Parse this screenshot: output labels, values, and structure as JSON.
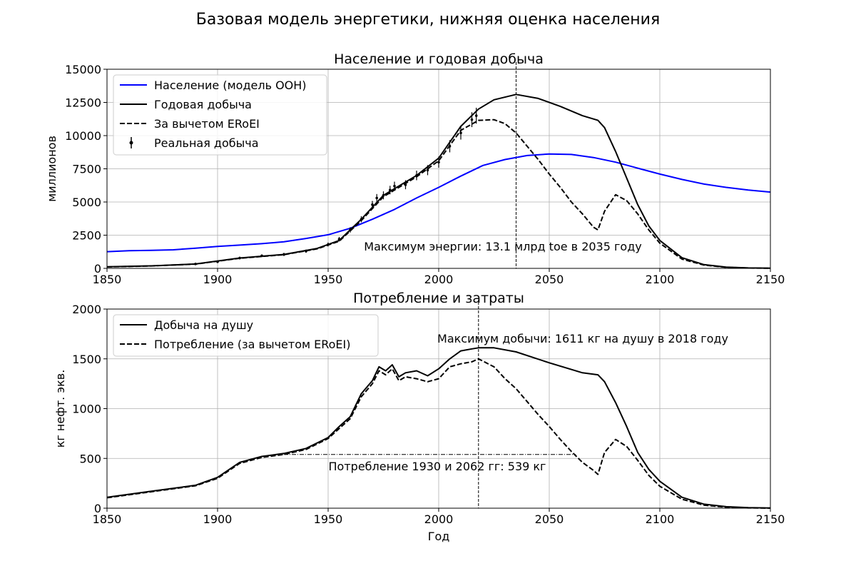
{
  "figure": {
    "suptitle": "Базовая модель энергетики, нижняя оценка населения"
  },
  "chart_data": [
    {
      "type": "line",
      "title": "Население и годовая добыча",
      "xlabel": "",
      "ylabel": "миллионов",
      "xlim": [
        1850,
        2150
      ],
      "ylim": [
        0,
        15000
      ],
      "xticks": [
        "1850",
        "1900",
        "1950",
        "2000",
        "2050",
        "2100",
        "2150"
      ],
      "yticks": [
        "0",
        "2500",
        "5000",
        "7500",
        "10000",
        "12500",
        "15000"
      ],
      "grid": true,
      "legend_position": "top-left",
      "series": [
        {
          "name": "Население (модель ООН)",
          "color": "#0000ff",
          "style": "solid",
          "x": [
            1850,
            1860,
            1870,
            1880,
            1890,
            1900,
            1910,
            1920,
            1930,
            1940,
            1950,
            1960,
            1970,
            1980,
            1990,
            2000,
            2010,
            2020,
            2030,
            2040,
            2050,
            2060,
            2070,
            2080,
            2090,
            2100,
            2110,
            2120,
            2130,
            2140,
            2150
          ],
          "y": [
            1260,
            1330,
            1360,
            1400,
            1520,
            1650,
            1750,
            1860,
            2000,
            2250,
            2530,
            3020,
            3700,
            4440,
            5300,
            6100,
            6950,
            7750,
            8200,
            8500,
            8620,
            8580,
            8350,
            8000,
            7550,
            7100,
            6700,
            6350,
            6100,
            5900,
            5750
          ]
        },
        {
          "name": "Годовая добыча",
          "color": "#000000",
          "style": "solid",
          "x": [
            1850,
            1870,
            1890,
            1910,
            1930,
            1945,
            1955,
            1965,
            1975,
            1980,
            1990,
            2000,
            2010,
            2018,
            2025,
            2035,
            2045,
            2055,
            2065,
            2072,
            2075,
            2080,
            2085,
            2090,
            2095,
            2100,
            2110,
            2120,
            2130,
            2140,
            2150
          ],
          "y": [
            120,
            190,
            330,
            780,
            1050,
            1500,
            2100,
            3700,
            5500,
            6000,
            7000,
            8300,
            10700,
            12000,
            12700,
            13100,
            12800,
            12200,
            11500,
            11150,
            10600,
            8800,
            6800,
            4800,
            3200,
            2100,
            800,
            280,
            90,
            30,
            10
          ]
        },
        {
          "name": "За вычетом ERoEI",
          "color": "#000000",
          "style": "dashed",
          "x": [
            1850,
            1870,
            1890,
            1910,
            1930,
            1945,
            1955,
            1965,
            1975,
            1980,
            1990,
            2000,
            2010,
            2018,
            2025,
            2030,
            2035,
            2040,
            2045,
            2050,
            2055,
            2060,
            2065,
            2070,
            2072,
            2075,
            2080,
            2085,
            2090,
            2095,
            2100,
            2110,
            2120,
            2130,
            2140,
            2150
          ],
          "y": [
            110,
            185,
            320,
            760,
            1030,
            1470,
            2050,
            3600,
            5400,
            5900,
            6900,
            8100,
            10400,
            11150,
            11200,
            10900,
            10200,
            9200,
            8200,
            7100,
            6100,
            5000,
            4100,
            3100,
            2900,
            4300,
            5550,
            5100,
            4100,
            2900,
            1900,
            700,
            250,
            80,
            25,
            10
          ]
        }
      ],
      "errorbar_series": {
        "name": "Реальная добыча",
        "color": "#000000",
        "x": [
          1890,
          1900,
          1910,
          1920,
          1930,
          1940,
          1950,
          1955,
          1960,
          1965,
          1970,
          1972,
          1975,
          1978,
          1980,
          1985,
          1990,
          1995,
          2000,
          2005,
          2010,
          2015,
          2017
        ],
        "y": [
          330,
          500,
          780,
          950,
          1050,
          1300,
          1800,
          2200,
          2900,
          3700,
          4800,
          5300,
          5500,
          5900,
          6200,
          6300,
          7000,
          7400,
          8000,
          9200,
          10200,
          11200,
          11500
        ],
        "err": [
          60,
          80,
          100,
          100,
          120,
          120,
          150,
          170,
          200,
          230,
          280,
          300,
          300,
          320,
          330,
          340,
          360,
          380,
          420,
          460,
          500,
          560,
          600
        ]
      },
      "vline_x": 2035,
      "annotation": "Максимум энергии: 13.1 млрд toe в 2035 году"
    },
    {
      "type": "line",
      "title": "Потребление и затраты",
      "xlabel": "Год",
      "ylabel": "кг нефт. экв.",
      "xlim": [
        1850,
        2150
      ],
      "ylim": [
        0,
        2000
      ],
      "xticks": [
        "1850",
        "1900",
        "1950",
        "2000",
        "2050",
        "2100",
        "2150"
      ],
      "yticks": [
        "0",
        "500",
        "1000",
        "1500",
        "2000"
      ],
      "grid": true,
      "legend_position": "top-left",
      "series": [
        {
          "name": "Добыча на душу",
          "color": "#000000",
          "style": "solid",
          "x": [
            1850,
            1870,
            1890,
            1900,
            1910,
            1920,
            1930,
            1940,
            1950,
            1955,
            1960,
            1965,
            1970,
            1973,
            1976,
            1979,
            1982,
            1985,
            1990,
            1995,
            2000,
            2005,
            2010,
            2015,
            2018,
            2025,
            2035,
            2050,
            2065,
            2072,
            2075,
            2080,
            2085,
            2090,
            2095,
            2100,
            2110,
            2120,
            2130,
            2140,
            2150
          ],
          "y": [
            110,
            170,
            230,
            310,
            460,
            520,
            550,
            600,
            710,
            820,
            920,
            1150,
            1280,
            1420,
            1380,
            1440,
            1320,
            1360,
            1380,
            1330,
            1400,
            1500,
            1580,
            1600,
            1611,
            1611,
            1570,
            1460,
            1360,
            1340,
            1270,
            1060,
            820,
            560,
            390,
            270,
            110,
            40,
            15,
            5,
            2
          ]
        },
        {
          "name": "Потребление (за вычетом ERoEI)",
          "color": "#000000",
          "style": "dashed",
          "x": [
            1850,
            1870,
            1890,
            1900,
            1910,
            1920,
            1930,
            1940,
            1950,
            1955,
            1960,
            1965,
            1970,
            1973,
            1976,
            1979,
            1982,
            1985,
            1990,
            1995,
            2000,
            2005,
            2010,
            2015,
            2018,
            2025,
            2030,
            2035,
            2040,
            2045,
            2050,
            2055,
            2060,
            2065,
            2070,
            2072,
            2075,
            2080,
            2085,
            2090,
            2095,
            2100,
            2110,
            2120,
            2130,
            2140,
            2150
          ],
          "y": [
            105,
            165,
            225,
            300,
            450,
            510,
            540,
            590,
            700,
            800,
            900,
            1120,
            1250,
            1380,
            1340,
            1400,
            1280,
            1320,
            1300,
            1270,
            1300,
            1420,
            1450,
            1470,
            1500,
            1420,
            1300,
            1200,
            1070,
            940,
            820,
            690,
            570,
            460,
            380,
            340,
            560,
            690,
            620,
            480,
            330,
            220,
            90,
            30,
            10,
            3,
            1
          ]
        }
      ],
      "vline_x": 2018,
      "hline": {
        "y": 539,
        "x_from": 1930,
        "x_to": 2062
      },
      "annotations": [
        "Максимум добычи: 1611 кг на душу в 2018 году",
        "Потребление 1930 и 2062 гг: 539 кг"
      ]
    }
  ]
}
